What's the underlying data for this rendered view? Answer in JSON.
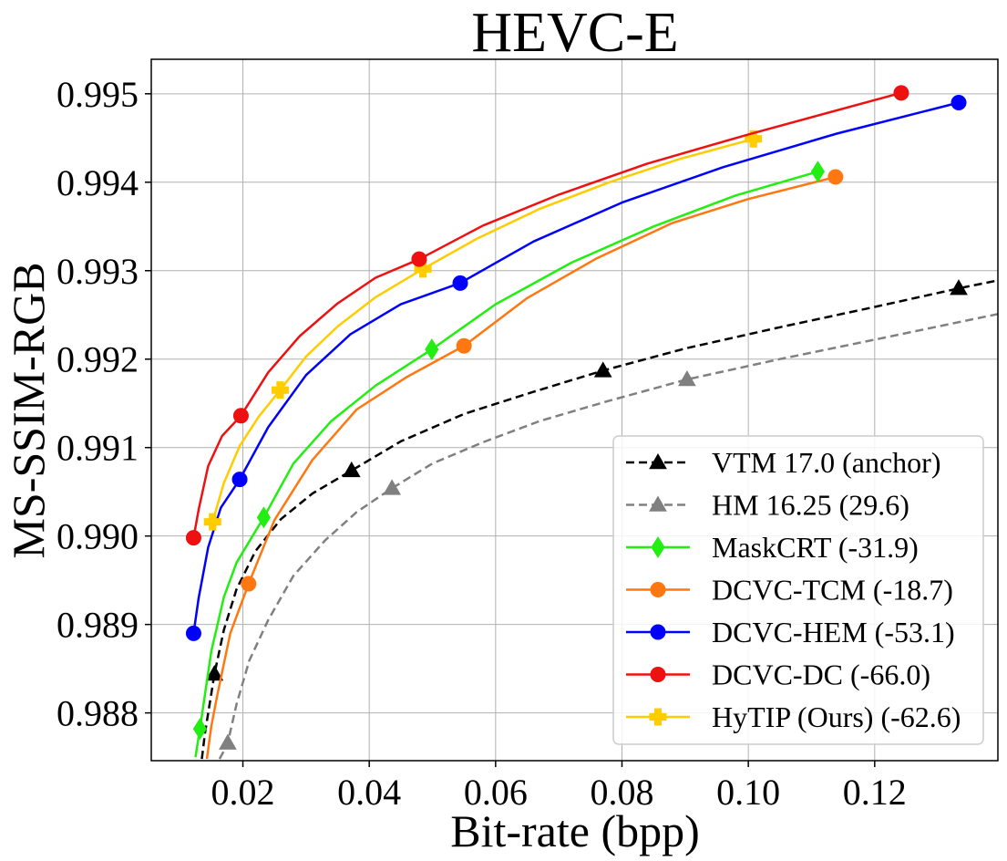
{
  "chart_data": {
    "type": "line",
    "title": "HEVC-E",
    "xlabel": "Bit-rate (bpp)",
    "ylabel": "MS-SSIM-RGB",
    "xlim": [
      0.0055,
      0.1395
    ],
    "ylim": [
      0.98746,
      0.99539
    ],
    "xticks": [
      0.02,
      0.04,
      0.06,
      0.08,
      0.1,
      0.12
    ],
    "xtick_labels": [
      "0.02",
      "0.04",
      "0.06",
      "0.08",
      "0.10",
      "0.12"
    ],
    "yticks": [
      0.988,
      0.989,
      0.99,
      0.991,
      0.992,
      0.993,
      0.994,
      0.995
    ],
    "ytick_labels": [
      "0.988",
      "0.989",
      "0.990",
      "0.991",
      "0.992",
      "0.993",
      "0.994",
      "0.995"
    ],
    "grid": true,
    "legend_position": "bottom-right",
    "series": [
      {
        "name": "VTM 17.0 (anchor)",
        "color": "#000000",
        "dashed": true,
        "marker": "triangle",
        "x": [
          0.0155,
          0.0372,
          0.077,
          0.1333
        ],
        "y": [
          0.98844,
          0.99074,
          0.99187,
          0.9928
        ],
        "curve_x": [
          0.0135,
          0.014,
          0.015,
          0.0155,
          0.017,
          0.019,
          0.022,
          0.026,
          0.031,
          0.0372,
          0.045,
          0.055,
          0.066,
          0.077,
          0.09,
          0.105,
          0.12,
          0.1333,
          0.1395
        ],
        "curve_y": [
          0.98748,
          0.98777,
          0.98822,
          0.98844,
          0.98894,
          0.9894,
          0.98983,
          0.99019,
          0.99048,
          0.99074,
          0.99107,
          0.99138,
          0.99163,
          0.99187,
          0.99212,
          0.99236,
          0.99259,
          0.9928,
          0.99289
        ]
      },
      {
        "name": "HM 16.25 (29.6)",
        "color": "#808080",
        "dashed": true,
        "marker": "triangle",
        "x": [
          0.0176,
          0.0436,
          0.0903
        ],
        "y": [
          0.98766,
          0.99054,
          0.99177
        ],
        "curve_x": [
          0.0163,
          0.017,
          0.0176,
          0.019,
          0.021,
          0.024,
          0.028,
          0.033,
          0.038,
          0.0436,
          0.05,
          0.058,
          0.067,
          0.0775,
          0.0903,
          0.105,
          0.12,
          0.1395
        ],
        "curve_y": [
          0.98748,
          0.98757,
          0.98766,
          0.9881,
          0.98859,
          0.98905,
          0.98955,
          0.98995,
          0.99027,
          0.99054,
          0.99082,
          0.99106,
          0.9913,
          0.99152,
          0.99177,
          0.992,
          0.99222,
          0.99251
        ]
      },
      {
        "name": "MaskCRT (-31.9)",
        "color": "#22ee11",
        "dashed": false,
        "marker": "diamond",
        "x": [
          0.0132,
          0.0233,
          0.0499,
          0.111
        ],
        "y": [
          0.98782,
          0.99021,
          0.99211,
          0.99412
        ],
        "curve_x": [
          0.0125,
          0.0132,
          0.015,
          0.017,
          0.019,
          0.0233,
          0.028,
          0.034,
          0.041,
          0.0499,
          0.06,
          0.072,
          0.085,
          0.098,
          0.111
        ],
        "curve_y": [
          0.9875,
          0.98782,
          0.9887,
          0.98931,
          0.9897,
          0.99021,
          0.99082,
          0.9913,
          0.9917,
          0.99211,
          0.99262,
          0.99309,
          0.9935,
          0.99385,
          0.99412
        ]
      },
      {
        "name": "DCVC-TCM (-18.7)",
        "color": "#ff7711",
        "dashed": false,
        "marker": "circle",
        "x": [
          0.0209,
          0.055,
          0.1138
        ],
        "y": [
          0.98946,
          0.99215,
          0.99406
        ],
        "curve_x": [
          0.0143,
          0.015,
          0.016,
          0.018,
          0.0209,
          0.025,
          0.031,
          0.038,
          0.046,
          0.055,
          0.065,
          0.076,
          0.088,
          0.1,
          0.1138
        ],
        "curve_y": [
          0.98748,
          0.98785,
          0.98822,
          0.9889,
          0.98946,
          0.99018,
          0.99086,
          0.99143,
          0.9918,
          0.99215,
          0.99269,
          0.99314,
          0.99354,
          0.99381,
          0.99406
        ]
      },
      {
        "name": "DCVC-HEM (-53.1)",
        "color": "#0000ff",
        "dashed": false,
        "marker": "circle",
        "x": [
          0.0122,
          0.0195,
          0.0544,
          0.1333
        ],
        "y": [
          0.9889,
          0.99064,
          0.99286,
          0.9949
        ],
        "curve_x": [
          0.0122,
          0.013,
          0.0145,
          0.0165,
          0.0195,
          0.024,
          0.03,
          0.037,
          0.045,
          0.0544,
          0.066,
          0.08,
          0.096,
          0.114,
          0.1333
        ],
        "curve_y": [
          0.9889,
          0.9893,
          0.98987,
          0.99032,
          0.99064,
          0.99123,
          0.99182,
          0.99228,
          0.99262,
          0.99286,
          0.99333,
          0.99377,
          0.99417,
          0.99455,
          0.9949
        ]
      },
      {
        "name": "DCVC-DC (-66.0)",
        "color": "#ee1111",
        "dashed": false,
        "marker": "circle",
        "x": [
          0.0122,
          0.0197,
          0.0479,
          0.1242
        ],
        "y": [
          0.98998,
          0.99136,
          0.99313,
          0.99501
        ],
        "curve_x": [
          0.0122,
          0.013,
          0.0145,
          0.0167,
          0.0197,
          0.024,
          0.029,
          0.035,
          0.041,
          0.0479,
          0.058,
          0.07,
          0.084,
          0.1,
          0.1242
        ],
        "curve_y": [
          0.98998,
          0.9903,
          0.99079,
          0.99113,
          0.99136,
          0.99185,
          0.99226,
          0.99263,
          0.99292,
          0.99313,
          0.99351,
          0.99386,
          0.99421,
          0.99454,
          0.99501
        ]
      },
      {
        "name": "HyTIP (Ours) (-62.6)",
        "color": "#ffcc00",
        "dashed": false,
        "marker": "plus",
        "x": [
          0.0152,
          0.0259,
          0.0485,
          0.1008
        ],
        "y": [
          0.99016,
          0.99165,
          0.99302,
          0.99449
        ],
        "curve_x": [
          0.0152,
          0.017,
          0.0195,
          0.0225,
          0.0259,
          0.03,
          0.035,
          0.041,
          0.0485,
          0.057,
          0.067,
          0.078,
          0.089,
          0.1008
        ],
        "curve_y": [
          0.99016,
          0.9906,
          0.99102,
          0.99135,
          0.99165,
          0.99203,
          0.99237,
          0.9927,
          0.99302,
          0.99336,
          0.9937,
          0.994,
          0.99426,
          0.99449
        ]
      }
    ]
  }
}
